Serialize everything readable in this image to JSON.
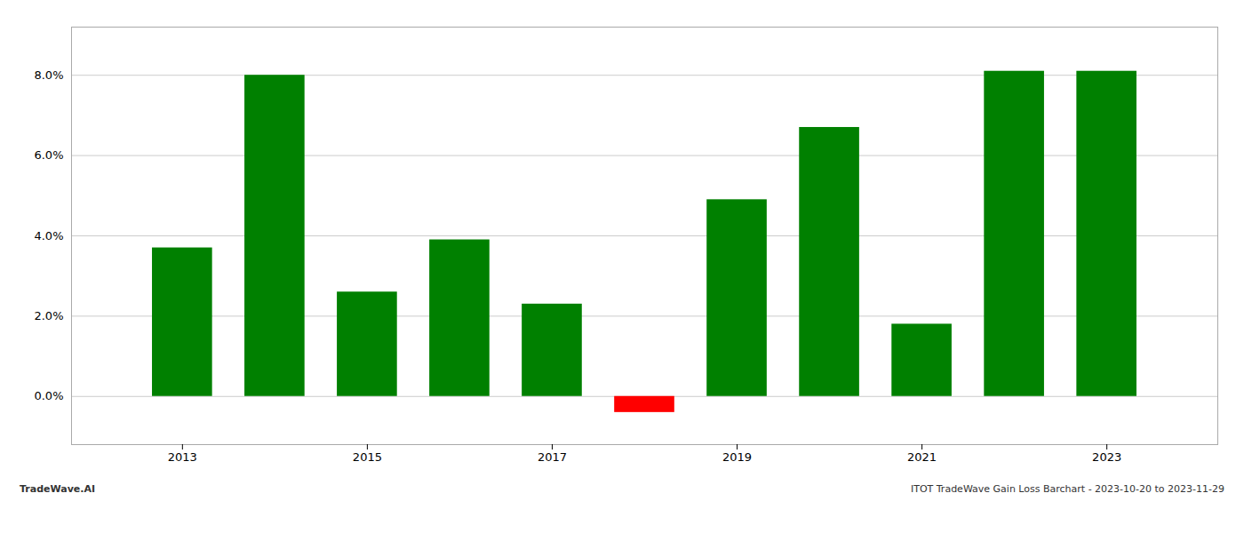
{
  "chart_data": {
    "type": "bar",
    "x": [
      2013,
      2014,
      2015,
      2016,
      2017,
      2018,
      2019,
      2020,
      2021,
      2022,
      2023
    ],
    "values": [
      0.037,
      0.08,
      0.026,
      0.039,
      0.023,
      -0.004,
      0.049,
      0.067,
      0.018,
      0.081,
      0.081
    ],
    "colors": [
      "#008000",
      "#008000",
      "#008000",
      "#008000",
      "#008000",
      "#ff0000",
      "#008000",
      "#008000",
      "#008000",
      "#008000",
      "#008000"
    ],
    "xlim": [
      2011.8,
      2024.2
    ],
    "xticks": [
      2013,
      2015,
      2017,
      2019,
      2021,
      2023
    ],
    "ylim": [
      -0.012,
      0.092
    ],
    "yticks": [
      {
        "value": 0.0,
        "label": "0.0%"
      },
      {
        "value": 0.02,
        "label": "2.0%"
      },
      {
        "value": 0.04,
        "label": "4.0%"
      },
      {
        "value": 0.06,
        "label": "6.0%"
      },
      {
        "value": 0.08,
        "label": "8.0%"
      }
    ],
    "grid": true,
    "annotations": [
      "TradeWave.AI",
      "ITOT TradeWave Gain Loss Barchart - 2023-10-20 to 2023-11-29"
    ]
  }
}
